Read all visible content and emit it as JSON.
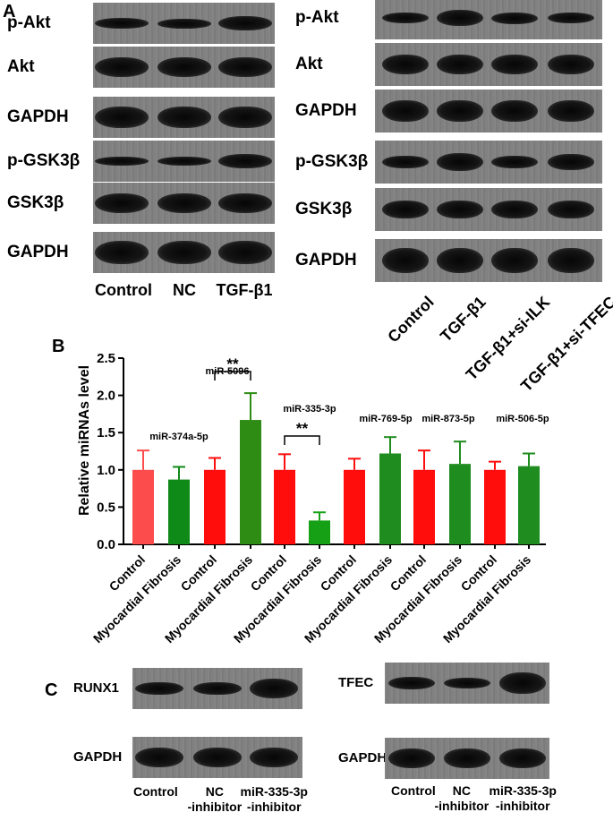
{
  "panels": {
    "a": "A",
    "b": "B",
    "c": "C"
  },
  "panel_a_left": {
    "rows": [
      "p-Akt",
      "Akt",
      "GAPDH",
      "p-GSK3β",
      "GSK3β",
      "GAPDH"
    ],
    "lanes": [
      "Control",
      "NC",
      "TGF-β1"
    ]
  },
  "panel_a_right": {
    "rows": [
      "p-Akt",
      "Akt",
      "GAPDH",
      "p-GSK3β",
      "GSK3β",
      "GAPDH"
    ],
    "lanes": [
      "Control",
      "TGF-β1",
      "TGF-β1+si-ILK",
      "TGF-β1+si-TFEC"
    ]
  },
  "panel_c_left": {
    "rows": [
      "RUNX1",
      "GAPDH"
    ],
    "lanes": [
      "Control",
      "NC\n-inhibitor",
      "miR-335-3p\n-inhibitor"
    ]
  },
  "panel_c_right": {
    "rows": [
      "TFEC",
      "GAPDH"
    ],
    "lanes": [
      "Control",
      "NC\n-inhibitor",
      "miR-335-3p\n-inhibitor"
    ]
  },
  "chart_data": {
    "type": "bar",
    "ylabel": "Relative miRNAs level",
    "ylim": [
      0,
      2.5
    ],
    "yticks": [
      "0.0",
      "0.5",
      "1.0",
      "1.5",
      "2.0",
      "2.5"
    ],
    "ytick_values": [
      0,
      0.5,
      1.0,
      1.5,
      2.0,
      2.5
    ],
    "categories": [
      "Control",
      "Myocardial Fibrosis",
      "Control",
      "Myocardial Fibrosis",
      "Control",
      "Myocardial Fibrosis",
      "Control",
      "Myocardial Fibrosis",
      "Control",
      "Myocardial Fibrosis",
      "Control",
      "Myocardial Fibrosis"
    ],
    "values": [
      1.0,
      0.87,
      1.0,
      1.67,
      1.0,
      0.32,
      1.0,
      1.22,
      1.0,
      1.08,
      1.0,
      1.05
    ],
    "errors": [
      0.26,
      0.17,
      0.16,
      0.36,
      0.21,
      0.11,
      0.15,
      0.22,
      0.26,
      0.3,
      0.11,
      0.17
    ],
    "colors": [
      "#fc4c4c",
      "#0f8a19",
      "#ff0d0d",
      "#2e8b13",
      "#ff0d0d",
      "#16a016",
      "#ff0d0d",
      "#1f8c1f",
      "#ff0d0d",
      "#1f8c1f",
      "#ff0d0d",
      "#1f8c1f"
    ],
    "groups": [
      "miR-374a-5p",
      "miR-5096",
      "miR-335-3p",
      "miR-769-5p",
      "miR-873-5p",
      "miR-506-5p"
    ],
    "significance": [
      {
        "group": 1,
        "label": "**"
      },
      {
        "group": 2,
        "label": "**"
      }
    ]
  }
}
